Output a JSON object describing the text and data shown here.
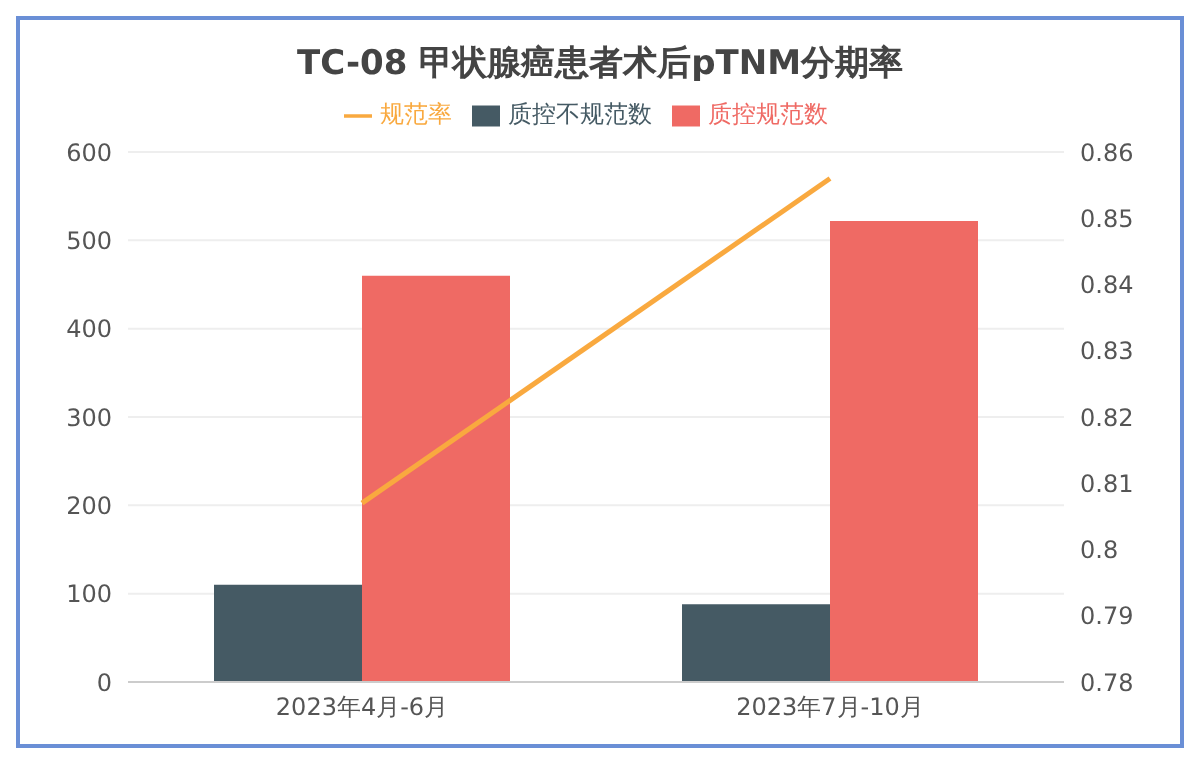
{
  "chart_data": {
    "type": "bar",
    "title": "TC-08 甲状腺癌患者术后pTNM分期率",
    "categories": [
      "2023年4月-6月",
      "2023年7月-10月"
    ],
    "series": [
      {
        "name": "质控不规范数",
        "color": "#455a64",
        "values": [
          110,
          88
        ]
      },
      {
        "name": "质控规范数",
        "color": "#ef6a64",
        "values": [
          460,
          522
        ]
      },
      {
        "name": "规范率",
        "type": "line",
        "axis": "y2",
        "color": "#f9a93f",
        "values": [
          0.807,
          0.856
        ]
      }
    ],
    "ylim": [
      0,
      600
    ],
    "yticks": [
      0,
      100,
      200,
      300,
      400,
      500,
      600
    ],
    "y2lim": [
      0.78,
      0.86
    ],
    "y2ticks": [
      0.78,
      0.79,
      0.8,
      0.81,
      0.82,
      0.83,
      0.84,
      0.85,
      0.86
    ],
    "grid": "y",
    "legend": "top",
    "marker": "none"
  }
}
